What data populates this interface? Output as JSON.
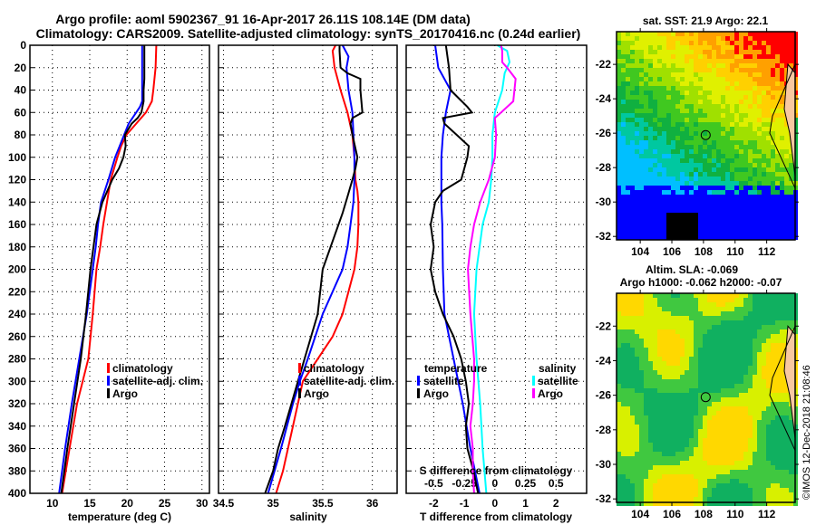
{
  "header": {
    "title_line1": "Argo profile: aoml 5902367_91 16-Apr-2017 26.11S 108.14E (DM data)",
    "title_line2": "Climatology: CARS2009. Satellite-adjusted climatology: synTS_20170416.nc (0.24d earlier)"
  },
  "colors": {
    "climatology": "#ff0000",
    "satellite": "#0000ff",
    "argo": "#000000",
    "sal_satellite": "#00ffff",
    "sal_argo": "#ff00ff"
  },
  "chart_data": [
    {
      "id": "temperature",
      "type": "line",
      "xlabel": "temperature (deg C)",
      "ylabel": "",
      "xlim": [
        7,
        31
      ],
      "ylim": [
        400,
        0
      ],
      "xticks": [
        10,
        15,
        20,
        25,
        30
      ],
      "yticks": [
        0,
        20,
        40,
        60,
        80,
        100,
        120,
        140,
        160,
        180,
        200,
        220,
        240,
        260,
        280,
        300,
        320,
        340,
        360,
        380,
        400
      ],
      "grid": true,
      "legend_position": "lower-right",
      "legend": [
        "climatology",
        "satellite-adj. clim.",
        "Argo"
      ],
      "series": [
        {
          "name": "climatology",
          "color_key": "climatology",
          "depth": [
            0,
            20,
            40,
            50,
            60,
            70,
            80,
            90,
            100,
            120,
            140,
            160,
            180,
            200,
            240,
            280,
            320,
            360,
            400
          ],
          "values": [
            23.9,
            23.8,
            23.5,
            23.3,
            22.5,
            21.2,
            19.9,
            19.2,
            18.7,
            17.8,
            17.3,
            16.8,
            16.4,
            15.9,
            15.4,
            14.8,
            13.3,
            12.3,
            11.3
          ]
        },
        {
          "name": "satellite-adj. clim.",
          "color_key": "satellite",
          "depth": [
            0,
            20,
            40,
            50,
            55,
            60,
            70,
            80,
            90,
            100,
            120,
            140,
            160,
            180,
            200,
            240,
            280,
            320,
            360,
            400
          ],
          "values": [
            22.0,
            22.0,
            22.0,
            22.0,
            21.7,
            21.2,
            20.2,
            19.6,
            19.0,
            18.4,
            17.5,
            16.5,
            16.1,
            15.8,
            15.4,
            14.6,
            13.6,
            12.6,
            11.7,
            10.9
          ]
        },
        {
          "name": "Argo",
          "color_key": "argo",
          "depth": [
            0,
            20,
            30,
            40,
            50,
            60,
            65,
            70,
            80,
            90,
            100,
            110,
            120,
            140,
            160,
            180,
            200,
            240,
            280,
            320,
            360,
            400
          ],
          "values": [
            22.3,
            22.3,
            22.3,
            22.2,
            22.2,
            21.9,
            21.4,
            20.6,
            19.7,
            19.8,
            19.5,
            18.9,
            18.0,
            16.7,
            15.9,
            15.5,
            15.1,
            14.5,
            13.8,
            12.9,
            12.0,
            11.2
          ]
        }
      ]
    },
    {
      "id": "salinity",
      "type": "line",
      "xlabel": "salinity",
      "xlim": [
        34.45,
        36.25
      ],
      "ylim": [
        400,
        0
      ],
      "xticks": [
        34.5,
        35,
        35.5,
        36
      ],
      "xtick_labels": [
        "34.5",
        "35",
        "35.5",
        "36"
      ],
      "grid": true,
      "legend_position": "lower-right",
      "legend": [
        "climatology",
        "satellite-adj. clim.",
        "Argo"
      ],
      "series": [
        {
          "name": "climatology",
          "color_key": "climatology",
          "depth": [
            0,
            5,
            20,
            40,
            60,
            80,
            100,
            120,
            130,
            140,
            160,
            180,
            200,
            240,
            260,
            300,
            340,
            380,
            400
          ],
          "values": [
            35.63,
            35.6,
            35.62,
            35.68,
            35.75,
            35.8,
            35.82,
            35.83,
            35.85,
            35.86,
            35.86,
            35.85,
            35.82,
            35.7,
            35.6,
            35.3,
            35.2,
            35.1,
            35.03
          ]
        },
        {
          "name": "satellite-adj. clim.",
          "color_key": "satellite",
          "depth": [
            0,
            10,
            20,
            40,
            60,
            80,
            100,
            120,
            140,
            160,
            180,
            200,
            240,
            280,
            300,
            320,
            360,
            400
          ],
          "values": [
            35.7,
            35.76,
            35.74,
            35.76,
            35.8,
            35.81,
            35.82,
            35.82,
            35.81,
            35.78,
            35.75,
            35.7,
            35.5,
            35.35,
            35.27,
            35.2,
            35.08,
            34.95
          ]
        },
        {
          "name": "Argo",
          "color_key": "argo",
          "depth": [
            0,
            5,
            20,
            25,
            30,
            40,
            50,
            60,
            65,
            70,
            80,
            100,
            110,
            120,
            135,
            150,
            170,
            200,
            240,
            300,
            340,
            360,
            380,
            400
          ],
          "values": [
            35.67,
            35.67,
            35.68,
            35.75,
            35.88,
            35.88,
            35.89,
            35.9,
            35.8,
            35.78,
            35.8,
            35.85,
            35.83,
            35.8,
            35.75,
            35.7,
            35.62,
            35.5,
            35.45,
            35.25,
            35.12,
            35.05,
            35.0,
            34.92
          ]
        }
      ]
    },
    {
      "id": "difference",
      "type": "line",
      "xlabel": "T difference from climatology",
      "xlabel_top": "S difference from climatology",
      "xlim_T": [
        -2.9,
        3.0
      ],
      "xlim_S": [
        -0.725,
        0.75
      ],
      "ylim": [
        400,
        0
      ],
      "xticks_T": [
        -2,
        -1,
        0,
        1,
        2
      ],
      "xticks_S": [
        -0.5,
        -0.25,
        0,
        0.25,
        0.5
      ],
      "grid": true,
      "legend_temperature": {
        "heading": "temperature",
        "items": [
          "satellite",
          "Argo"
        ]
      },
      "legend_salinity": {
        "heading": "salinity",
        "items": [
          "satellite",
          "Argo"
        ]
      },
      "series": [
        {
          "name": "temperature satellite",
          "axis": "T",
          "color_key": "satellite",
          "depth": [
            0,
            20,
            40,
            60,
            80,
            100,
            120,
            140,
            160,
            200,
            240,
            280,
            320,
            360,
            400
          ],
          "values": [
            -1.95,
            -1.85,
            -1.45,
            -1.6,
            -1.7,
            -1.75,
            -1.75,
            -1.75,
            -1.72,
            -1.7,
            -1.65,
            -1.35,
            -1.05,
            -0.8,
            -0.5
          ]
        },
        {
          "name": "temperature Argo",
          "axis": "T",
          "color_key": "argo",
          "depth": [
            0,
            20,
            40,
            55,
            60,
            65,
            70,
            80,
            90,
            100,
            110,
            120,
            130,
            140,
            160,
            180,
            200,
            220,
            240,
            260,
            280,
            300,
            320,
            340,
            360,
            380,
            400
          ],
          "values": [
            -1.6,
            -1.5,
            -1.45,
            -0.9,
            -0.75,
            -1.7,
            -1.65,
            -1.25,
            -0.85,
            -0.9,
            -1.0,
            -1.1,
            -1.7,
            -1.95,
            -2.1,
            -2.0,
            -2.1,
            -1.95,
            -1.7,
            -1.35,
            -1.1,
            -0.95,
            -0.85,
            -0.95,
            -0.9,
            -0.7,
            -0.55
          ]
        },
        {
          "name": "salinity satellite",
          "axis": "S",
          "color_key": "sal_satellite",
          "depth": [
            0,
            5,
            15,
            25,
            40,
            60,
            80,
            100,
            120,
            140,
            160,
            200,
            240,
            280,
            320,
            360,
            400
          ],
          "values": [
            0.02,
            0.1,
            0.12,
            0.08,
            0.06,
            0.0,
            -0.02,
            -0.02,
            -0.03,
            -0.05,
            -0.1,
            -0.15,
            -0.17,
            -0.15,
            -0.12,
            -0.1,
            -0.07
          ]
        },
        {
          "name": "salinity Argo",
          "axis": "S",
          "color_key": "sal_argo",
          "depth": [
            0,
            5,
            15,
            20,
            30,
            50,
            55,
            60,
            65,
            80,
            100,
            120,
            140,
            160,
            180,
            200,
            240,
            280,
            300,
            320,
            340,
            360,
            380,
            400
          ],
          "values": [
            0.05,
            0.06,
            0.06,
            0.1,
            0.17,
            0.15,
            0.1,
            0.05,
            0.0,
            0.01,
            0.0,
            -0.05,
            -0.12,
            -0.17,
            -0.2,
            -0.22,
            -0.2,
            -0.17,
            -0.17,
            -0.18,
            -0.2,
            -0.18,
            -0.18,
            -0.17
          ]
        }
      ]
    }
  ],
  "maps": [
    {
      "id": "sst-map",
      "title": "sat. SST: 21.9 Argo: 22.1",
      "xticks": [
        "104",
        "106",
        "108",
        "110",
        "112"
      ],
      "yticks": [
        "-22",
        "-24",
        "-26",
        "-28",
        "-30",
        "-32"
      ],
      "lon_range": [
        102.5,
        113.8
      ],
      "lat_range": [
        -32.2,
        -20.1
      ],
      "argo_position": {
        "lon": 108.14,
        "lat": -26.11
      }
    },
    {
      "id": "sla-map",
      "title_line1": "Altim. SLA: -0.069",
      "title_line2": "Argo h1000: -0.062 h2000: -0.07",
      "xticks": [
        "104",
        "106",
        "108",
        "110",
        "112"
      ],
      "yticks": [
        "-22",
        "-24",
        "-26",
        "-28",
        "-30",
        "-32"
      ],
      "lon_range": [
        102.5,
        113.8
      ],
      "lat_range": [
        -32.2,
        -20.1
      ],
      "argo_position": {
        "lon": 108.14,
        "lat": -26.11
      }
    }
  ],
  "watermark": "©IMOS 12-Dec-2018 21:08:46"
}
